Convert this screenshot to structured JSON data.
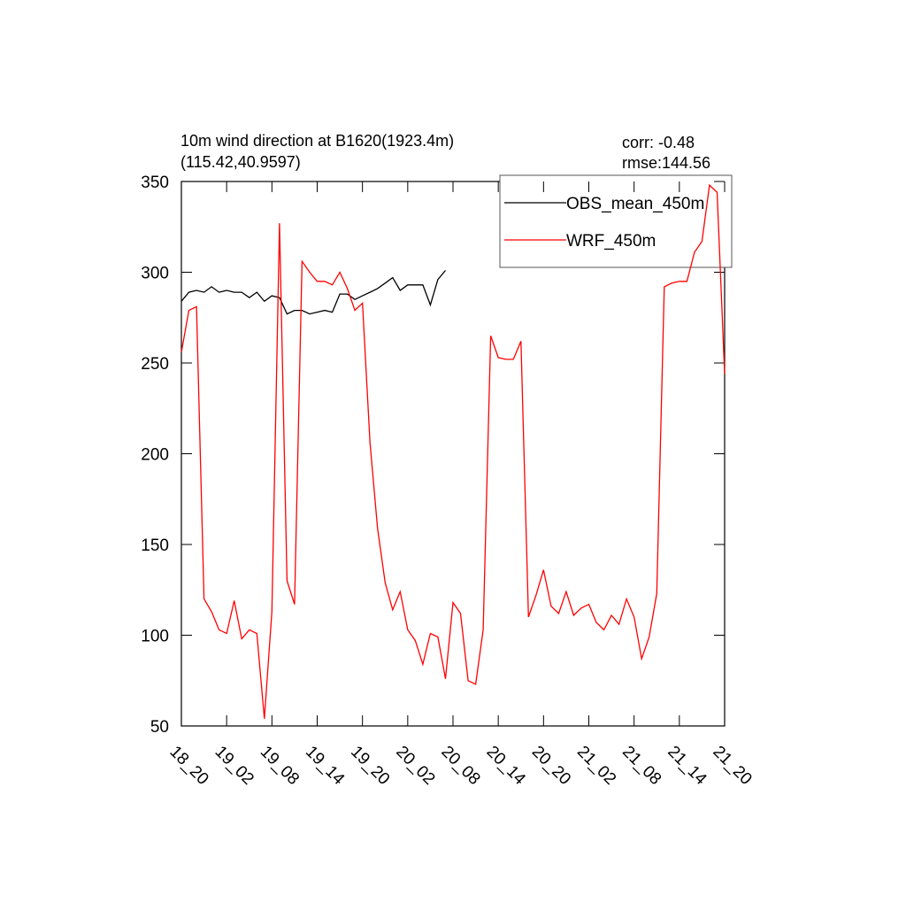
{
  "chart_data": {
    "type": "line",
    "title": "10m wind direction at B1620(1923.4m)",
    "subtitle": "(115.42,40.9597)",
    "annotations": [
      "corr: -0.48",
      "rmse:144.56"
    ],
    "x": [
      0,
      1,
      2,
      3,
      4,
      5,
      6,
      7,
      8,
      9,
      10,
      11,
      12,
      13,
      14,
      15,
      16,
      17,
      18,
      19,
      20,
      21,
      22,
      23,
      24,
      25,
      26,
      27,
      28,
      29,
      30,
      31,
      32,
      33,
      34,
      35,
      36,
      37,
      38,
      39,
      40,
      41,
      42,
      43,
      44,
      45,
      46,
      47,
      48,
      49,
      50,
      51,
      52,
      53,
      54,
      55,
      56,
      57,
      58,
      59,
      60,
      61,
      62,
      63,
      64,
      65,
      66,
      67,
      68,
      69,
      70,
      71,
      72
    ],
    "series": [
      {
        "name": "OBS_mean_450m",
        "color": "#000000",
        "values": [
          284,
          289,
          290,
          289,
          292,
          289,
          290,
          289,
          289,
          286,
          289,
          284,
          287,
          286,
          277,
          279,
          279,
          277,
          278,
          279,
          278,
          288,
          288,
          285,
          287,
          289,
          291,
          294,
          297,
          290,
          293,
          293,
          293,
          282,
          296,
          301,
          null,
          null,
          null,
          null,
          null,
          null,
          null,
          null,
          null,
          null,
          null,
          null,
          null,
          null,
          null,
          null,
          null,
          null,
          null,
          null,
          null,
          null,
          null,
          null,
          null,
          null,
          null,
          null,
          null,
          null,
          null,
          null,
          null,
          null,
          null,
          null,
          null
        ]
      },
      {
        "name": "WRF_450m",
        "color": "#ff0000",
        "values": [
          256,
          279,
          281,
          120,
          113,
          103,
          101,
          119,
          98,
          103,
          101,
          54,
          113,
          327,
          130,
          117,
          306,
          300,
          295,
          295,
          293,
          300,
          291,
          279,
          283,
          206,
          159,
          129,
          114,
          124,
          103,
          97,
          84,
          101,
          99,
          76,
          118,
          112,
          75,
          73,
          103,
          265,
          253,
          252,
          252,
          262,
          110,
          122,
          136,
          116,
          112,
          124,
          111,
          115,
          117,
          107,
          103,
          111,
          106,
          120,
          110,
          87,
          99,
          123,
          292,
          294,
          295,
          295,
          311,
          317,
          348,
          344,
          244
        ]
      }
    ],
    "xlim": [
      0,
      72
    ],
    "xticks": [
      {
        "value": 0,
        "label": "18_20"
      },
      {
        "value": 6,
        "label": "19_02"
      },
      {
        "value": 12,
        "label": "19_08"
      },
      {
        "value": 18,
        "label": "19_14"
      },
      {
        "value": 24,
        "label": "19_20"
      },
      {
        "value": 30,
        "label": "20_02"
      },
      {
        "value": 36,
        "label": "20_08"
      },
      {
        "value": 42,
        "label": "20_14"
      },
      {
        "value": 48,
        "label": "20_20"
      },
      {
        "value": 54,
        "label": "21_02"
      },
      {
        "value": 60,
        "label": "21_08"
      },
      {
        "value": 66,
        "label": "21_14"
      },
      {
        "value": 72,
        "label": "21_20"
      }
    ],
    "ylim": [
      50,
      350
    ],
    "yticks": [
      50,
      100,
      150,
      200,
      250,
      300,
      350
    ],
    "legend": "top-right"
  }
}
